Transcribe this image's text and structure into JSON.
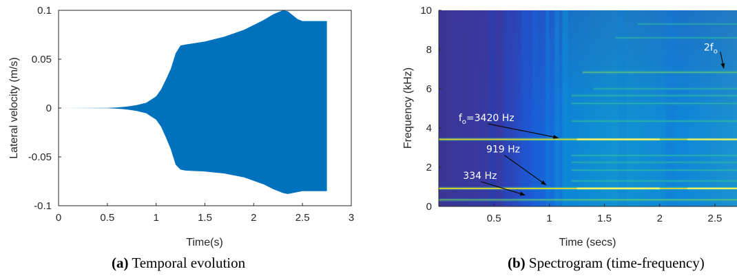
{
  "chart_data": [
    {
      "id": "a",
      "type": "area",
      "caption_prefix": "(a)",
      "caption": "Temporal evolution",
      "xlabel": "Time(s)",
      "ylabel": "Lateral velocity (m/s)",
      "xlim": [
        0,
        3
      ],
      "ylim": [
        -0.1,
        0.1
      ],
      "xticks": [
        "0",
        "0.5",
        "1",
        "1.5",
        "2",
        "2.5",
        "3"
      ],
      "yticks": [
        "-0.1",
        "-0.05",
        "0",
        "0.05",
        "0.1"
      ],
      "grid": false,
      "color": "#0072BD",
      "envelope_upper": {
        "x": [
          0,
          0.5,
          0.6,
          0.7,
          0.8,
          0.9,
          1.0,
          1.05,
          1.1,
          1.15,
          1.2,
          1.25,
          1.3,
          1.5,
          1.7,
          1.9,
          2.1,
          2.2,
          2.3,
          2.35,
          2.4,
          2.45,
          2.5,
          2.6,
          2.75
        ],
        "values": [
          0,
          0.0002,
          0.0006,
          0.0015,
          0.003,
          0.0055,
          0.012,
          0.019,
          0.029,
          0.04,
          0.056,
          0.064,
          0.065,
          0.068,
          0.073,
          0.08,
          0.09,
          0.096,
          0.1,
          0.099,
          0.095,
          0.091,
          0.089,
          0.089,
          0.089
        ]
      },
      "envelope_lower": {
        "x": [
          0,
          0.5,
          0.6,
          0.7,
          0.8,
          0.9,
          1.0,
          1.05,
          1.1,
          1.15,
          1.2,
          1.25,
          1.3,
          1.5,
          1.7,
          1.9,
          2.1,
          2.2,
          2.3,
          2.35,
          2.4,
          2.45,
          2.5,
          2.6,
          2.75
        ],
        "values": [
          0,
          -0.0002,
          -0.0006,
          -0.0015,
          -0.003,
          -0.0055,
          -0.012,
          -0.019,
          -0.03,
          -0.042,
          -0.058,
          -0.063,
          -0.064,
          -0.065,
          -0.067,
          -0.071,
          -0.078,
          -0.083,
          -0.087,
          -0.088,
          -0.087,
          -0.086,
          -0.085,
          -0.085,
          -0.085
        ]
      }
    },
    {
      "id": "b",
      "type": "heatmap",
      "caption_prefix": "(b)",
      "caption": "Spectrogram (time-frequency)",
      "xlabel": "Time (secs)",
      "ylabel": "Frequency (kHz)",
      "xlim": [
        0,
        2.7
      ],
      "ylim": [
        0,
        10
      ],
      "xticks": [
        "0.5",
        "1",
        "1.5",
        "2",
        "2.5"
      ],
      "yticks": [
        "0",
        "2",
        "4",
        "6",
        "8",
        "10"
      ],
      "colors": {
        "low": "#352a87",
        "mid": "#0f7fd9",
        "high": "#2fbe9f",
        "peak": "#f9e81e"
      },
      "lines": [
        {
          "freq_khz": 0.334,
          "onset_s": 0.0,
          "strength": 0.75
        },
        {
          "freq_khz": 0.919,
          "onset_s": 0.0,
          "strength": 0.95
        },
        {
          "freq_khz": 1.3,
          "onset_s": 1.2,
          "strength": 0.45
        },
        {
          "freq_khz": 1.85,
          "onset_s": 1.2,
          "strength": 0.4
        },
        {
          "freq_khz": 2.25,
          "onset_s": 1.2,
          "strength": 0.4
        },
        {
          "freq_khz": 2.6,
          "onset_s": 1.2,
          "strength": 0.45
        },
        {
          "freq_khz": 3.42,
          "onset_s": 0.0,
          "strength": 1.0
        },
        {
          "freq_khz": 4.35,
          "onset_s": 1.2,
          "strength": 0.45
        },
        {
          "freq_khz": 5.25,
          "onset_s": 1.2,
          "strength": 0.45
        },
        {
          "freq_khz": 5.65,
          "onset_s": 1.2,
          "strength": 0.4
        },
        {
          "freq_khz": 6.0,
          "onset_s": 1.4,
          "strength": 0.4
        },
        {
          "freq_khz": 6.84,
          "onset_s": 1.3,
          "strength": 0.7
        },
        {
          "freq_khz": 8.6,
          "onset_s": 1.6,
          "strength": 0.25
        },
        {
          "freq_khz": 9.3,
          "onset_s": 1.8,
          "strength": 0.2
        }
      ],
      "annotations": [
        {
          "label": "2f",
          "sub": "o",
          "rest": "",
          "text_x": 2.4,
          "text_y": 7.95,
          "arrow_to": [
            2.58,
            7.05
          ]
        },
        {
          "label": "f",
          "sub": "o",
          "rest": "=3420 Hz",
          "text_x": 0.18,
          "text_y": 4.35,
          "arrow_to": [
            1.08,
            3.5
          ]
        },
        {
          "label": "919 Hz",
          "sub": "",
          "rest": "",
          "text_x": 0.43,
          "text_y": 2.75,
          "arrow_to": [
            0.97,
            1.1
          ]
        },
        {
          "label": "334 Hz",
          "sub": "",
          "rest": "",
          "text_x": 0.22,
          "text_y": 1.4,
          "arrow_to": [
            0.78,
            0.58
          ]
        }
      ]
    }
  ]
}
